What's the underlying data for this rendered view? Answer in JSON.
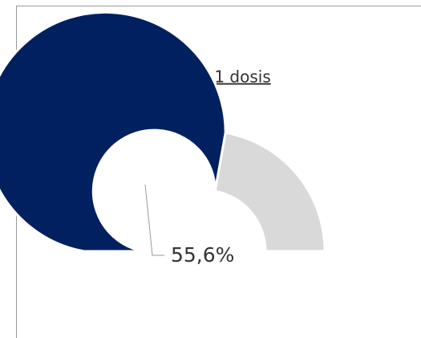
{
  "chart_data": {
    "type": "gauge",
    "title": "Al menos 1 dosis",
    "values": [
      55.6,
      44.4
    ],
    "value_labels": [
      "55,6%",
      null
    ],
    "colors": [
      "#002060",
      "#d9d9d9"
    ]
  }
}
